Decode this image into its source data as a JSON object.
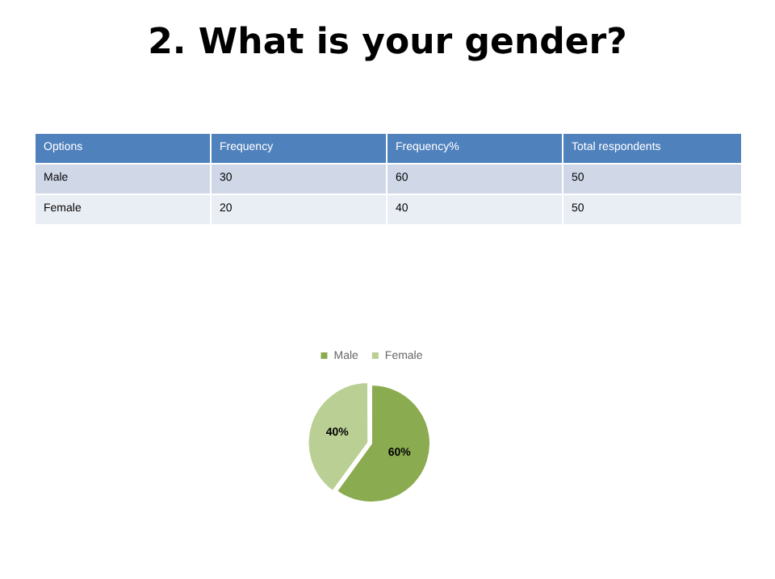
{
  "chart_data": {
    "type": "pie",
    "title": "2. What is your gender?",
    "categories": [
      "Male",
      "Female"
    ],
    "values": [
      60,
      40
    ],
    "value_labels": [
      "60%",
      "40%"
    ],
    "colors": [
      "#8aab4f",
      "#b9cf93"
    ],
    "legend": "top",
    "annotations": [
      "Options",
      "Frequency",
      "Frequency%",
      "Total respondents",
      "Male",
      "30",
      "60",
      "50",
      "Female",
      "20",
      "40",
      "50"
    ]
  }
}
